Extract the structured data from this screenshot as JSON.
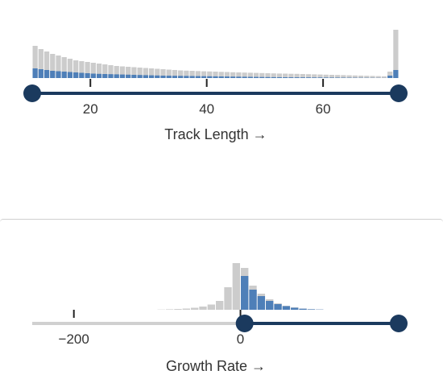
{
  "colors": {
    "unselected": "#cccccc",
    "selected": "#4e7fb8",
    "track": "#1b3a5e",
    "track_inactive": "#d0d0d0",
    "tick": "#222222"
  },
  "filters": [
    {
      "label": "Track Length →",
      "ticks": [
        "20",
        "40",
        "60"
      ],
      "range": {
        "min": 10,
        "max": 73
      },
      "selection": {
        "low": 10,
        "high": 73
      }
    },
    {
      "label": "Growth Rate →",
      "ticks": [
        "−200",
        "0"
      ],
      "range": {
        "min": -250,
        "max": 190
      },
      "selection": {
        "low": 5,
        "high": 190
      }
    }
  ],
  "chart_data": [
    {
      "type": "bar",
      "xlabel": "Track Length →",
      "x_ticks": [
        20,
        40,
        60
      ],
      "xlim": [
        10,
        73
      ],
      "series": [
        {
          "values": [
            40,
            36,
            33,
            30,
            28,
            26,
            24,
            22,
            21,
            20,
            19,
            18,
            17,
            16,
            15,
            14.5,
            14,
            13.5,
            13,
            12.5,
            12,
            11.5,
            11,
            10.5,
            10,
            9.5,
            9.2,
            9,
            8.7,
            8.4,
            8.2,
            8,
            7.7,
            7.5,
            7.2,
            7,
            6.8,
            6.6,
            6.4,
            6.2,
            6,
            5.8,
            5.6,
            5.5,
            5.3,
            5.2,
            5,
            4.8,
            4.6,
            4.4,
            4.2,
            4,
            3.8,
            3.6,
            3.4,
            3.2,
            3,
            2.8,
            2.6,
            2.4,
            2.2,
            8,
            60
          ]
        },
        {
          "values": [
            12,
            11,
            10,
            9,
            8.5,
            8,
            7.5,
            7,
            6.5,
            6,
            5.5,
            5.2,
            5,
            4.8,
            4.6,
            4.4,
            4.2,
            4,
            3.8,
            3.6,
            3.4,
            3.2,
            3,
            2.9,
            2.8,
            2.7,
            2.6,
            2.5,
            2.4,
            2.3,
            2.2,
            2.1,
            2,
            1.9,
            1.8,
            1.7,
            1.6,
            1.5,
            1.4,
            1.3,
            1.2,
            1.1,
            1.05,
            1,
            0.95,
            0.9,
            0.85,
            0.8,
            0.75,
            0.7,
            0.65,
            0.6,
            0.55,
            0.5,
            0.45,
            0.4,
            0.35,
            0.3,
            0.25,
            0.2,
            0.15,
            3,
            10
          ]
        }
      ]
    },
    {
      "type": "bar",
      "xlabel": "Growth Rate →",
      "x_ticks": [
        -200,
        0
      ],
      "xlim": [
        -250,
        190
      ],
      "bin_start": -100,
      "bin_width": 10,
      "series": [
        {
          "values": [
            0.3,
            0.6,
            1,
            1.5,
            2.5,
            4,
            6.5,
            11,
            28,
            58,
            52,
            30,
            20,
            13,
            8,
            5,
            3,
            1.5,
            0.7,
            0.3
          ]
        },
        {
          "values": [
            0,
            0,
            0,
            0,
            0,
            0,
            0,
            0,
            0,
            0,
            42,
            25,
            17,
            11,
            7,
            4.5,
            2.5,
            1.3,
            0.6,
            0.3
          ]
        }
      ]
    }
  ]
}
